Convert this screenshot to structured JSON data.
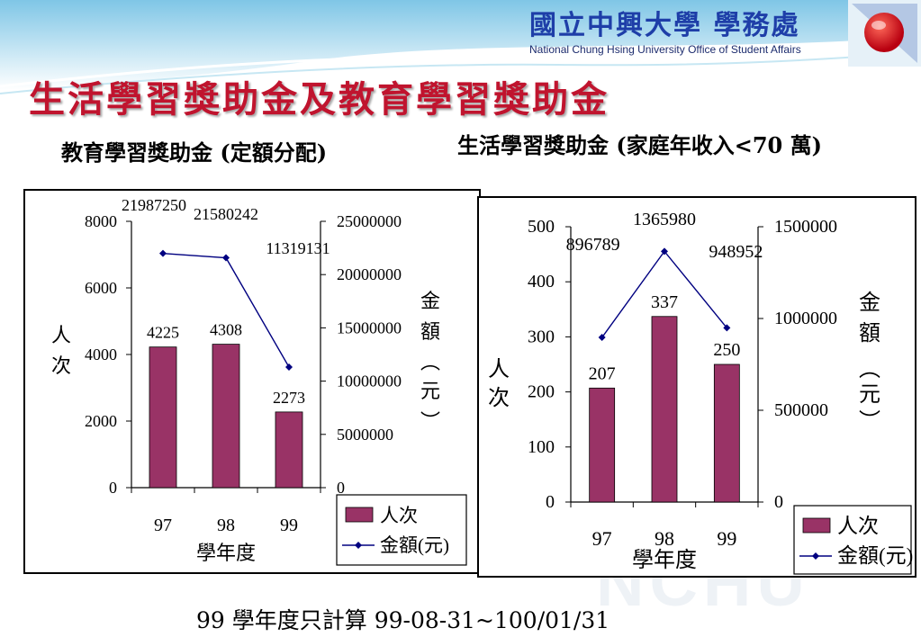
{
  "header": {
    "org_title": "國立中興大學 學務處",
    "org_subtitle": "National Chung Hsing University Office of Student Affairs",
    "main_title": "生活學習獎助金及教育學習獎助金",
    "left_subtitle": "教育學習獎助金 (定額分配)",
    "right_subtitle": "生活學習獎助金 (家庭年收入<70 萬)",
    "footnote": "99 學年度只計算 99-08-31~100/01/31"
  },
  "watermark": "NCHU",
  "colors": {
    "bar": "#993366",
    "line": "#000080",
    "title": "#c0142e",
    "logo": "#1e3ea8"
  },
  "chart_data": [
    {
      "type": "bar",
      "categories": [
        "97",
        "98",
        "99"
      ],
      "series": [
        {
          "name": "人次",
          "type": "bar",
          "axis": "left",
          "values": [
            4225,
            4308,
            2273
          ]
        },
        {
          "name": "金額(元)",
          "type": "line",
          "axis": "right",
          "values": [
            21987250,
            21580242,
            11319131
          ]
        }
      ],
      "xlabel": "學年度",
      "ylabel": "人次",
      "y2label": "金額(元)",
      "ylim": [
        0,
        8000
      ],
      "yticks": [
        "0",
        "2000",
        "4000",
        "6000",
        "8000"
      ],
      "y2lim": [
        0,
        25000000
      ],
      "y2ticks": [
        "0",
        "5000000",
        "10000000",
        "15000000",
        "20000000",
        "25000000"
      ],
      "legend": "bottom-right",
      "grid": false
    },
    {
      "type": "bar",
      "categories": [
        "97",
        "98",
        "99"
      ],
      "series": [
        {
          "name": "人次",
          "type": "bar",
          "axis": "left",
          "values": [
            207,
            337,
            250
          ]
        },
        {
          "name": "金額(元)",
          "type": "line",
          "axis": "right",
          "values": [
            896789,
            1365980,
            948952
          ]
        }
      ],
      "xlabel": "學年度",
      "ylabel": "人次",
      "y2label": "金額(元)",
      "ylim": [
        0,
        500
      ],
      "yticks": [
        "0",
        "100",
        "200",
        "300",
        "400",
        "500"
      ],
      "y2lim": [
        0,
        1500000
      ],
      "y2ticks": [
        "0",
        "500000",
        "1000000",
        "1500000"
      ],
      "legend": "bottom-right",
      "grid": false
    }
  ]
}
